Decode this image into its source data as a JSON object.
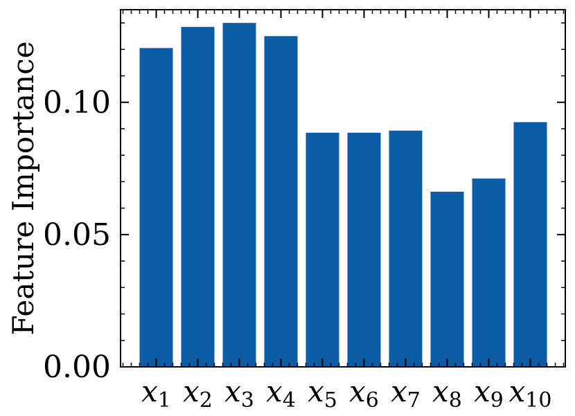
{
  "chart_data": {
    "type": "bar",
    "categories": [
      {
        "base": "x",
        "sub": "1"
      },
      {
        "base": "x",
        "sub": "2"
      },
      {
        "base": "x",
        "sub": "3"
      },
      {
        "base": "x",
        "sub": "4"
      },
      {
        "base": "x",
        "sub": "5"
      },
      {
        "base": "x",
        "sub": "6"
      },
      {
        "base": "x",
        "sub": "7"
      },
      {
        "base": "x",
        "sub": "8"
      },
      {
        "base": "x",
        "sub": "9"
      },
      {
        "base": "x",
        "sub": "10"
      }
    ],
    "values": [
      0.1205,
      0.1285,
      0.13,
      0.125,
      0.0885,
      0.0885,
      0.0893,
      0.0662,
      0.0712,
      0.0925
    ],
    "title": "",
    "xlabel": "",
    "ylabel": "Feature Importance",
    "ylim": [
      0,
      0.135
    ],
    "yticks": [
      0.0,
      0.05,
      0.1
    ],
    "ytick_labels": [
      "0.00",
      "0.05",
      "0.10"
    ],
    "bar_color": "#0c5da5",
    "grid": false,
    "legend": "none"
  }
}
